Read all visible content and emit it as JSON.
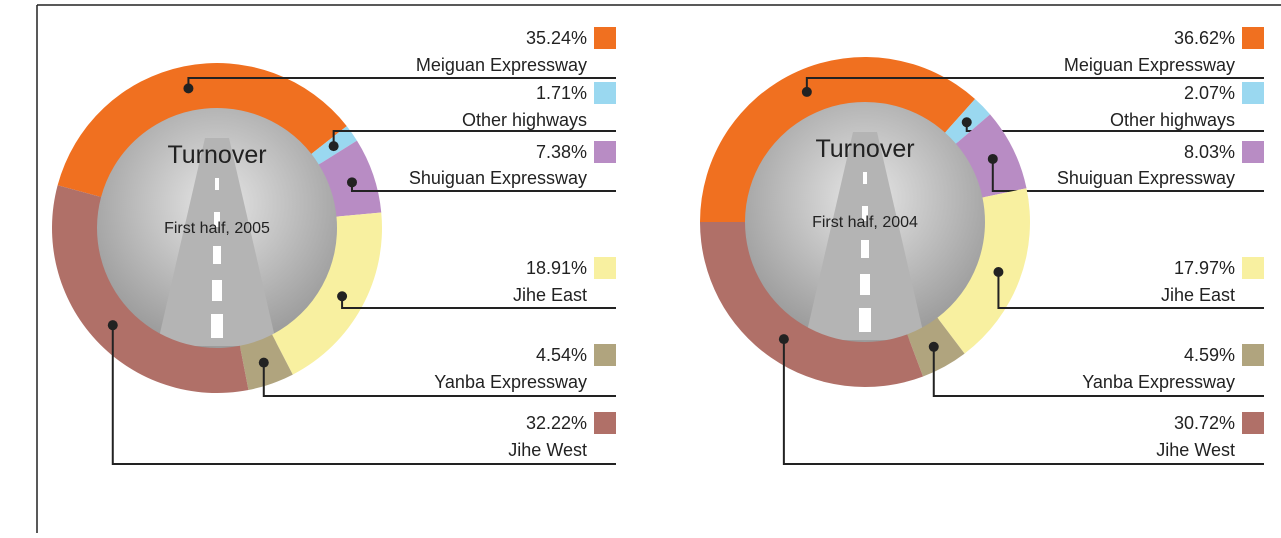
{
  "chart_data": [
    {
      "type": "pie",
      "title": "Turnover",
      "subtitle": "First half, 2005",
      "categories": [
        "Meiguan Expressway",
        "Other highways",
        "Shuiguan Expressway",
        "Jihe East",
        "Yanba Expressway",
        "Jihe West"
      ],
      "values": [
        35.24,
        1.71,
        7.38,
        18.91,
        4.54,
        32.22
      ],
      "value_labels": [
        "35.24%",
        "1.71%",
        "7.38%",
        "18.91%",
        "4.54%",
        "32.22%"
      ],
      "colors": [
        "#f07020",
        "#9ad8f0",
        "#b88cc4",
        "#f8f0a0",
        "#b0a47e",
        "#b07068"
      ]
    },
    {
      "type": "pie",
      "title": "Turnover",
      "subtitle": "First half, 2004",
      "categories": [
        "Meiguan Expressway",
        "Other highways",
        "Shuiguan Expressway",
        "Jihe East",
        "Yanba Expressway",
        "Jihe West"
      ],
      "values": [
        36.62,
        2.07,
        8.03,
        17.97,
        4.59,
        30.72
      ],
      "value_labels": [
        "36.62%",
        "2.07%",
        "8.03%",
        "17.97%",
        "4.59%",
        "30.72%"
      ],
      "colors": [
        "#f07020",
        "#9ad8f0",
        "#b88cc4",
        "#f8f0a0",
        "#b0a47e",
        "#b07068"
      ]
    }
  ]
}
